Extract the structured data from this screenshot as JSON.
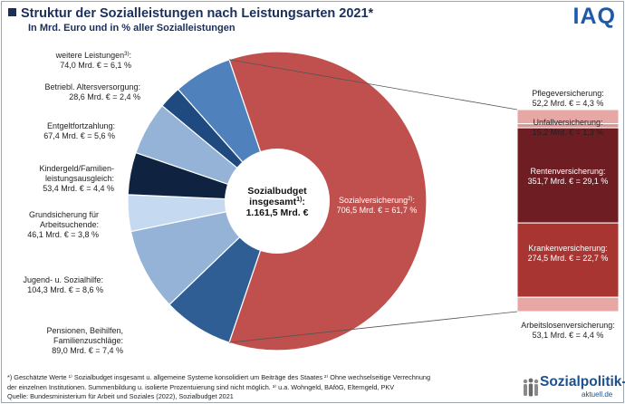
{
  "header": {
    "title": "Struktur der Sozialleistungen nach Leistungsarten 2021*",
    "subtitle": "In Mrd. Euro und in % aller Sozialleistungen",
    "brand": "IAQ"
  },
  "chart_data": {
    "type": "pie",
    "title": "Struktur der Sozialleistungen nach Leistungsarten 2021*",
    "subtitle": "In Mrd. Euro und in % aller Sozialleistungen",
    "unit": "Mrd. €",
    "center_label": {
      "line1": "Sozialbudget",
      "line2": "insgesamt",
      "sup": "1)",
      "line2_suffix": ":",
      "line3": "1.161,5 Mrd. €"
    },
    "slices": [
      {
        "name": "Sozialversicherung",
        "sup": "2)",
        "value": 706.5,
        "percent": 61.7,
        "color": "#c0504d",
        "label": [
          "Sozialversicherung2):",
          "706,5 Mrd. € = 61,7 %"
        ]
      },
      {
        "name": "Pensionen, Beihilfen, Familienzuschläge",
        "value": 89.0,
        "percent": 7.4,
        "color": "#2e5e94",
        "label": [
          "Pensionen, Beihilfen,",
          "Familienzuschläge:",
          "89,0 Mrd. € = 7,4 %"
        ]
      },
      {
        "name": "Jugend- u. Sozialhilfe",
        "value": 104.3,
        "percent": 8.6,
        "color": "#95b3d7",
        "label": [
          "Jugend-  u. Sozialhilfe:",
          "104,3 Mrd. € = 8,6 %"
        ]
      },
      {
        "name": "Grundsicherung für Arbeitsuchende",
        "value": 46.1,
        "percent": 3.8,
        "color": "#c5d9f1",
        "label": [
          "Grundsicherung  für",
          "Arbeitsuchende:",
          "46,1 Mrd. € = 3,8 %"
        ]
      },
      {
        "name": "Kindergeld/Familienleistungsausgleich",
        "value": 53.4,
        "percent": 4.4,
        "color": "#0f2341",
        "label": [
          "Kindergeld/Familien-",
          "leistungsausgleich:",
          "53,4 Mrd. € = 4,4 %"
        ]
      },
      {
        "name": "Entgeltfortzahlung",
        "value": 67.4,
        "percent": 5.6,
        "color": "#95b3d7",
        "label": [
          "Entgeltfortzahlung:",
          "67,4 Mrd. € = 5,6 %"
        ]
      },
      {
        "name": "Betriebl. Altersversorgung",
        "value": 28.6,
        "percent": 2.4,
        "color": "#1f4a80",
        "label": [
          "Betriebl.  Altersversorgung:",
          "28,6 Mrd. € = 2,4 %"
        ]
      },
      {
        "name": "weitere Leistungen",
        "sup": "3)",
        "value": 74.0,
        "percent": 6.1,
        "color": "#4f81bd",
        "label": [
          "weitere  Leistungen3):",
          "74,0 Mrd. € = 6,1 %"
        ]
      }
    ],
    "breakdown": {
      "parent": "Sozialversicherung",
      "segments": [
        {
          "name": "Pflegeversicherung",
          "value": 52.2,
          "percent": 4.3,
          "color": "#e6a7a5",
          "label": [
            "Pflegeversicherung:",
            "52,2 Mrd. € = 4,3 %"
          ]
        },
        {
          "name": "Unfallversicherung",
          "value": 15.2,
          "percent": 1.3,
          "color": "#d99594",
          "label": [
            "Unfallversicherung:",
            "15,2 Mrd. € = 1,3 %"
          ]
        },
        {
          "name": "Rentenversicherung",
          "value": 351.7,
          "percent": 29.1,
          "color": "#6e1e23",
          "label": [
            "Rentenversicherung:",
            "351,7 Mrd. € = 29,1 %"
          ]
        },
        {
          "name": "Krankenversicherung",
          "value": 274.5,
          "percent": 22.7,
          "color": "#a83532",
          "label": [
            "Krankenversicherung:",
            "274,5 Mrd. € = 22,7 %"
          ]
        },
        {
          "name": "Arbeitslosenversicherung",
          "value": 53.1,
          "percent": 4.4,
          "color": "#e6a7a5",
          "label": [
            "Arbeitslosenversicherung:",
            "53,1 Mrd. € = 4,4 %"
          ]
        }
      ]
    }
  },
  "footer": {
    "notes_line1": "*) Geschätzte Werte ¹⁾ Sozialbudget insgesamt u. allgemeine Systeme konsolidiert um Beiträge des Staates ²⁾ Ohne wechselseitige Verrechnung",
    "notes_line2": "der einzelnen Institutionen. Summenbildung u. isolierte Prozentuierung sind nicht möglich. ³⁾ u.a. Wohngeld, BAföG, Elterngeld, PKV",
    "source": "Quelle: Bundesministerium für Arbeit und Soziales (2022), Sozialbudget 2021"
  },
  "brand_footer": {
    "main": "Sozialpolitik-",
    "sub": "aktuell.de"
  }
}
